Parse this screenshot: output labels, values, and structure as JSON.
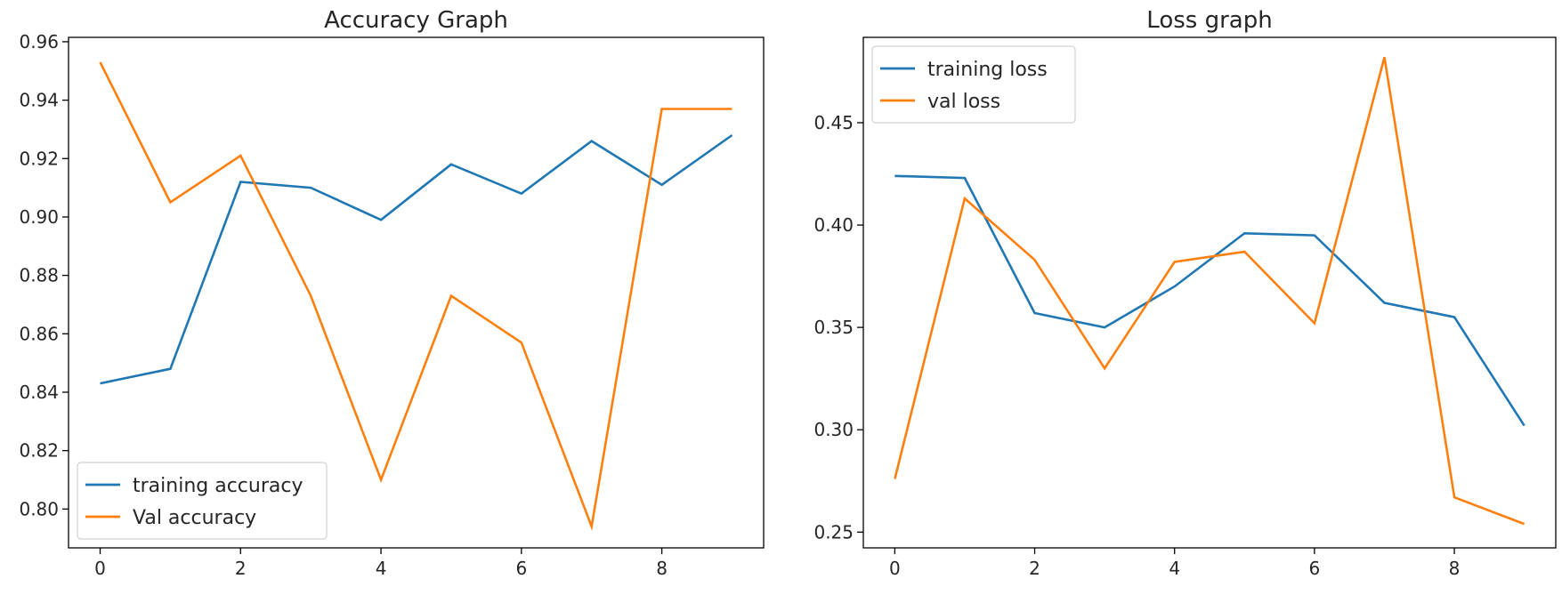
{
  "chart_data": [
    {
      "type": "line",
      "title": "Accuracy Graph",
      "xlabel": "",
      "ylabel": "",
      "x": [
        0,
        1,
        2,
        3,
        4,
        5,
        6,
        7,
        8,
        9
      ],
      "xlim": [
        -0.45,
        9.45
      ],
      "ylim": [
        0.7867,
        0.9615
      ],
      "xticks": [
        0,
        2,
        4,
        6,
        8
      ],
      "xtick_labels": [
        "0",
        "2",
        "4",
        "6",
        "8"
      ],
      "yticks": [
        0.8,
        0.82,
        0.84,
        0.86,
        0.88,
        0.9,
        0.92,
        0.94,
        0.96
      ],
      "ytick_labels": [
        "0.80",
        "0.82",
        "0.84",
        "0.86",
        "0.88",
        "0.90",
        "0.92",
        "0.94",
        "0.96"
      ],
      "grid": false,
      "legend_position": "lower-left",
      "series": [
        {
          "name": "training accuracy",
          "color": "#1f77b4",
          "values": [
            0.843,
            0.848,
            0.912,
            0.91,
            0.899,
            0.918,
            0.908,
            0.926,
            0.911,
            0.928
          ]
        },
        {
          "name": "Val accuracy",
          "color": "#ff7f0e",
          "values": [
            0.953,
            0.905,
            0.921,
            0.873,
            0.81,
            0.873,
            0.857,
            0.794,
            0.937,
            0.937
          ]
        }
      ]
    },
    {
      "type": "line",
      "title": "Loss graph",
      "xlabel": "",
      "ylabel": "",
      "x": [
        0,
        1,
        2,
        3,
        4,
        5,
        6,
        7,
        8,
        9
      ],
      "xlim": [
        -0.45,
        9.45
      ],
      "ylim": [
        0.2423,
        0.4917
      ],
      "xticks": [
        0,
        2,
        4,
        6,
        8
      ],
      "xtick_labels": [
        "0",
        "2",
        "4",
        "6",
        "8"
      ],
      "yticks": [
        0.25,
        0.3,
        0.35,
        0.4,
        0.45
      ],
      "ytick_labels": [
        "0.25",
        "0.30",
        "0.35",
        "0.40",
        "0.45"
      ],
      "grid": false,
      "legend_position": "upper-left",
      "series": [
        {
          "name": "training loss",
          "color": "#1f77b4",
          "values": [
            0.424,
            0.423,
            0.357,
            0.35,
            0.37,
            0.396,
            0.395,
            0.362,
            0.355,
            0.302
          ]
        },
        {
          "name": "val loss",
          "color": "#ff7f0e",
          "values": [
            0.276,
            0.413,
            0.383,
            0.33,
            0.382,
            0.387,
            0.352,
            0.482,
            0.267,
            0.254
          ]
        }
      ]
    }
  ]
}
